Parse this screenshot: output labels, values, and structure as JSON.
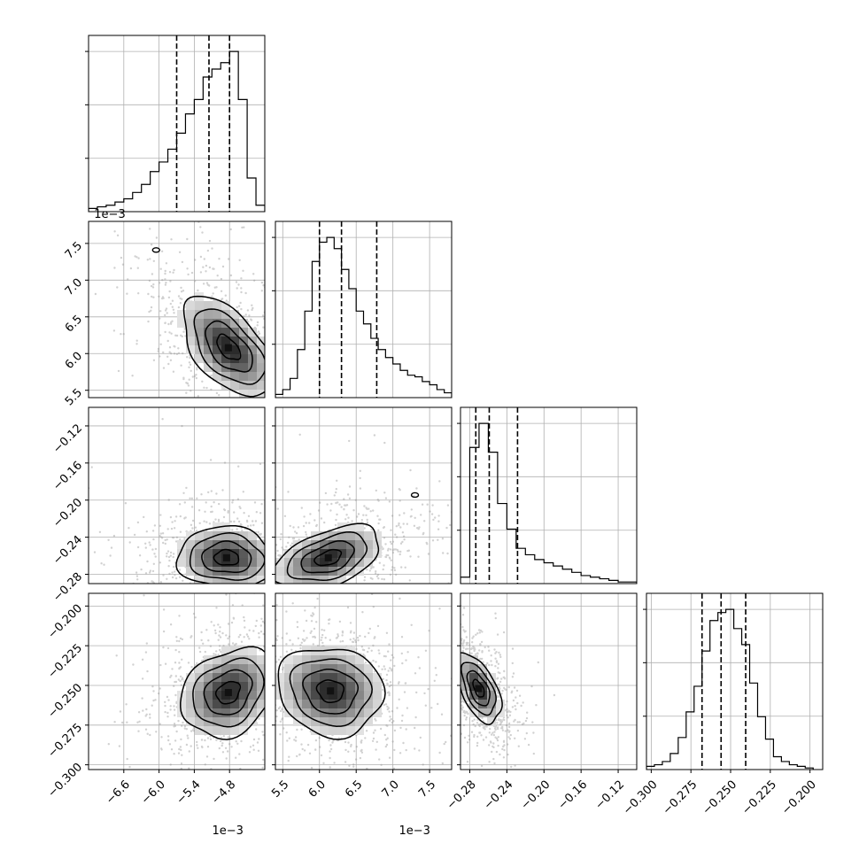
{
  "chart_data": {
    "type": "corner",
    "grid": true,
    "variables": [
      {
        "range": [
          -0.0072,
          -0.0042
        ],
        "ticks": [
          -0.0066,
          -0.006,
          -0.0054,
          -0.0048
        ],
        "tick_labels": [
          "−6.6",
          "−6.0",
          "−5.4",
          "−4.8"
        ],
        "offset_label": "1e−3",
        "quantiles": [
          -0.0057,
          -0.00515,
          -0.0048
        ],
        "hist_edges": [
          -0.0072,
          -0.00705,
          -0.0069,
          -0.00675,
          -0.0066,
          -0.00645,
          -0.0063,
          -0.00615,
          -0.006,
          -0.00585,
          -0.0057,
          -0.00555,
          -0.0054,
          -0.00525,
          -0.0051,
          -0.00495,
          -0.0048,
          -0.00465,
          -0.0045,
          -0.00435,
          -0.0042
        ],
        "hist_counts": [
          0.02,
          0.03,
          0.04,
          0.06,
          0.08,
          0.12,
          0.17,
          0.25,
          0.31,
          0.39,
          0.49,
          0.61,
          0.7,
          0.84,
          0.89,
          0.93,
          1.0,
          0.7,
          0.21,
          0.04
        ]
      },
      {
        "range": [
          0.0054,
          0.0078
        ],
        "ticks": [
          0.0055,
          0.006,
          0.0065,
          0.007,
          0.0075
        ],
        "tick_labels": [
          "5.5",
          "6.0",
          "6.5",
          "7.0",
          "7.5"
        ],
        "offset_label": "1e−3",
        "quantiles": [
          0.006,
          0.0063,
          0.00678
        ],
        "hist_edges": [
          0.0054,
          0.0055,
          0.0056,
          0.0057,
          0.0058,
          0.0059,
          0.006,
          0.0061,
          0.0062,
          0.0063,
          0.0064,
          0.0065,
          0.0066,
          0.0067,
          0.0068,
          0.0069,
          0.007,
          0.0071,
          0.0072,
          0.0073,
          0.0074,
          0.0075,
          0.0076,
          0.0077,
          0.0078
        ],
        "hist_counts": [
          0.02,
          0.05,
          0.12,
          0.3,
          0.54,
          0.85,
          0.97,
          1.0,
          0.93,
          0.8,
          0.68,
          0.54,
          0.46,
          0.37,
          0.3,
          0.25,
          0.21,
          0.17,
          0.14,
          0.13,
          0.1,
          0.08,
          0.05,
          0.03
        ]
      },
      {
        "range": [
          -0.29,
          -0.1
        ],
        "ticks": [
          -0.28,
          -0.24,
          -0.2,
          -0.16,
          -0.12
        ],
        "tick_labels": [
          "−0.28",
          "−0.24",
          "−0.20",
          "−0.16",
          "−0.12"
        ],
        "offset_label": "",
        "quantiles": [
          -0.2735,
          -0.259,
          -0.2285
        ],
        "hist_edges": [
          -0.29,
          -0.28,
          -0.27,
          -0.26,
          -0.25,
          -0.24,
          -0.23,
          -0.22,
          -0.21,
          -0.2,
          -0.19,
          -0.18,
          -0.17,
          -0.16,
          -0.15,
          -0.14,
          -0.13,
          -0.12,
          -0.11,
          -0.1
        ],
        "hist_counts": [
          0.04,
          0.85,
          1.0,
          0.82,
          0.5,
          0.34,
          0.22,
          0.18,
          0.15,
          0.13,
          0.11,
          0.09,
          0.07,
          0.05,
          0.04,
          0.03,
          0.02,
          0.01,
          0.01
        ]
      },
      {
        "range": [
          -0.303,
          -0.192
        ],
        "ticks": [
          -0.3,
          -0.275,
          -0.25,
          -0.225,
          -0.2
        ],
        "tick_labels": [
          "−0.300",
          "−0.275",
          "−0.250",
          "−0.225",
          "−0.200"
        ],
        "offset_label": "",
        "quantiles": [
          -0.268,
          -0.256,
          -0.2405
        ],
        "hist_edges": [
          -0.303,
          -0.298,
          -0.293,
          -0.288,
          -0.283,
          -0.278,
          -0.273,
          -0.268,
          -0.263,
          -0.258,
          -0.253,
          -0.248,
          -0.243,
          -0.238,
          -0.233,
          -0.228,
          -0.223,
          -0.218,
          -0.213,
          -0.208,
          -0.203,
          -0.198
        ],
        "hist_counts": [
          0.02,
          0.03,
          0.05,
          0.1,
          0.2,
          0.36,
          0.52,
          0.74,
          0.93,
          0.98,
          1.0,
          0.88,
          0.78,
          0.54,
          0.33,
          0.19,
          0.08,
          0.05,
          0.03,
          0.02,
          0.01
        ]
      }
    ],
    "pairs": [
      {
        "row": 1,
        "col": 0,
        "mean": [
          -0.00482,
          0.00608
        ],
        "sigma": [
          0.0004,
          0.00034
        ],
        "rho": -0.55,
        "outlier": [
          -0.00605,
          0.00741
        ]
      },
      {
        "row": 2,
        "col": 0,
        "mean": [
          -0.00485,
          -0.2622
        ],
        "sigma": [
          0.00042,
          0.0165
        ],
        "rho": -0.05
      },
      {
        "row": 2,
        "col": 1,
        "mean": [
          0.00612,
          -0.2622
        ],
        "sigma": [
          0.00036,
          0.017
        ],
        "rho": 0.45,
        "outlier": [
          0.0073,
          -0.1945
        ]
      },
      {
        "row": 3,
        "col": 0,
        "mean": [
          -0.00482,
          -0.2545
        ],
        "sigma": [
          0.0004,
          0.014
        ],
        "rho": 0.25
      },
      {
        "row": 3,
        "col": 1,
        "mean": [
          0.00615,
          -0.2535
        ],
        "sigma": [
          0.00036,
          0.014
        ],
        "rho": -0.1
      },
      {
        "row": 3,
        "col": 2,
        "mean": [
          -0.2705,
          -0.252
        ],
        "sigma": [
          0.012,
          0.011
        ],
        "rho": -0.55
      }
    ]
  }
}
